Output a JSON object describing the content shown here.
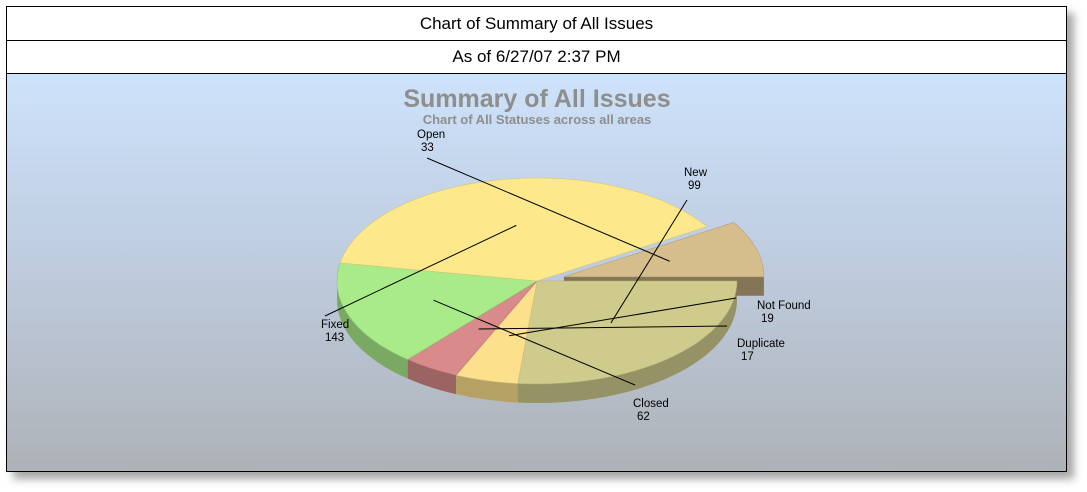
{
  "header": {
    "title": "Chart of Summary of All Issues",
    "subtitle": "As of 6/27/07 2:37 PM"
  },
  "chart_data": {
    "type": "pie",
    "title": "Summary of All Issues",
    "subtitle": "Chart of All Statuses across all areas",
    "exploded": [
      "Open"
    ],
    "slices": [
      {
        "name": "New",
        "value": 99,
        "color": "#cfcb8c"
      },
      {
        "name": "Not Found",
        "value": 19,
        "color": "#fde08c"
      },
      {
        "name": "Duplicate",
        "value": 17,
        "color": "#d98a8a"
      },
      {
        "name": "Closed",
        "value": 62,
        "color": "#a8eb88"
      },
      {
        "name": "Fixed",
        "value": 143,
        "color": "#fde98c"
      },
      {
        "name": "Open",
        "value": 33,
        "color": "#d5bd8c"
      }
    ]
  }
}
